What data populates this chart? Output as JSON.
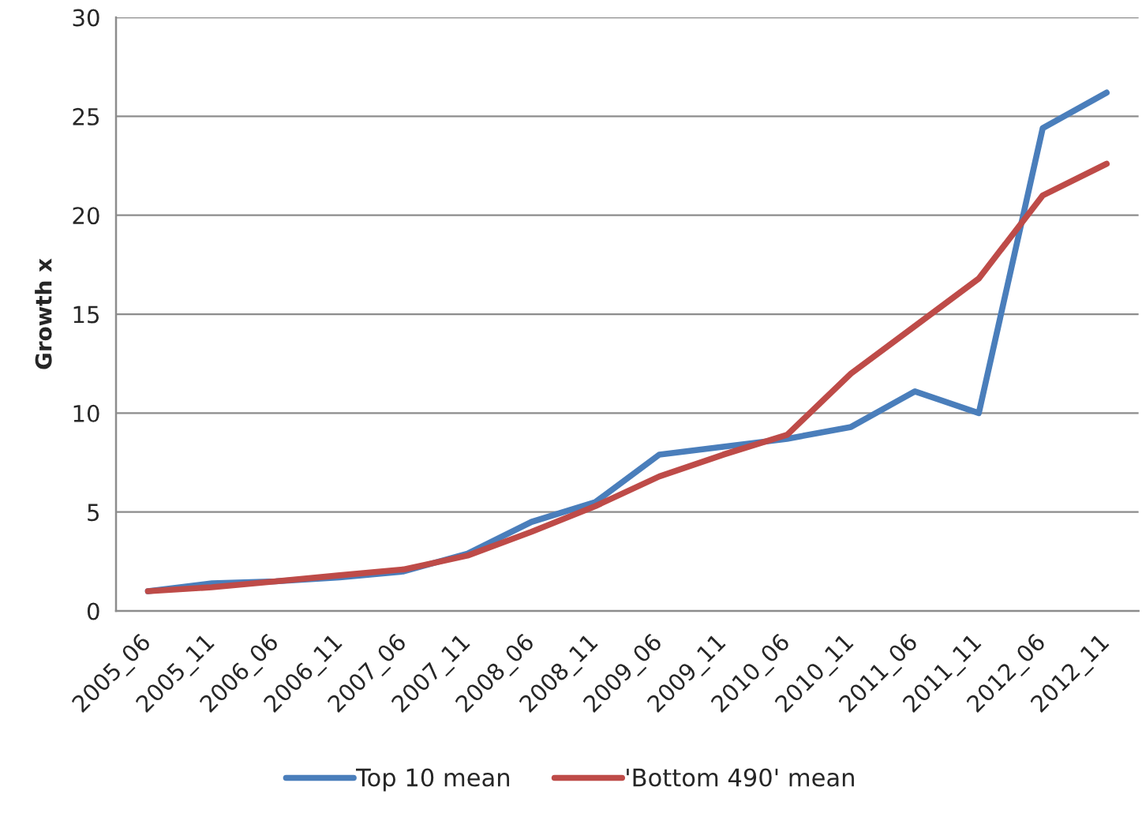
{
  "chart_data": {
    "type": "line",
    "ylabel": "Growth x",
    "categories": [
      "2005_06",
      "2005_11",
      "2006_06",
      "2006_11",
      "2007_06",
      "2007_11",
      "2008_06",
      "2008_11",
      "2009_06",
      "2009_11",
      "2010_06",
      "2010_11",
      "2011_06",
      "2011_11",
      "2012_06",
      "2012_11"
    ],
    "series": [
      {
        "name": "Top 10 mean",
        "color": "#4a7ebb",
        "values": [
          1.0,
          1.4,
          1.5,
          1.7,
          2.0,
          2.9,
          4.5,
          5.5,
          7.9,
          8.3,
          8.7,
          9.3,
          11.1,
          10.0,
          24.4,
          26.2
        ]
      },
      {
        "name": "'Bottom 490' mean",
        "color": "#be4b48",
        "values": [
          1.0,
          1.2,
          1.5,
          1.8,
          2.1,
          2.8,
          4.0,
          5.3,
          6.8,
          7.9,
          8.9,
          12.0,
          14.4,
          16.8,
          21.0,
          22.6
        ]
      }
    ],
    "ylim": [
      0,
      30
    ],
    "yticks": [
      0,
      5,
      10,
      15,
      20,
      25,
      30
    ],
    "grid": "y",
    "legend": "bottom",
    "line_style": "solid"
  }
}
